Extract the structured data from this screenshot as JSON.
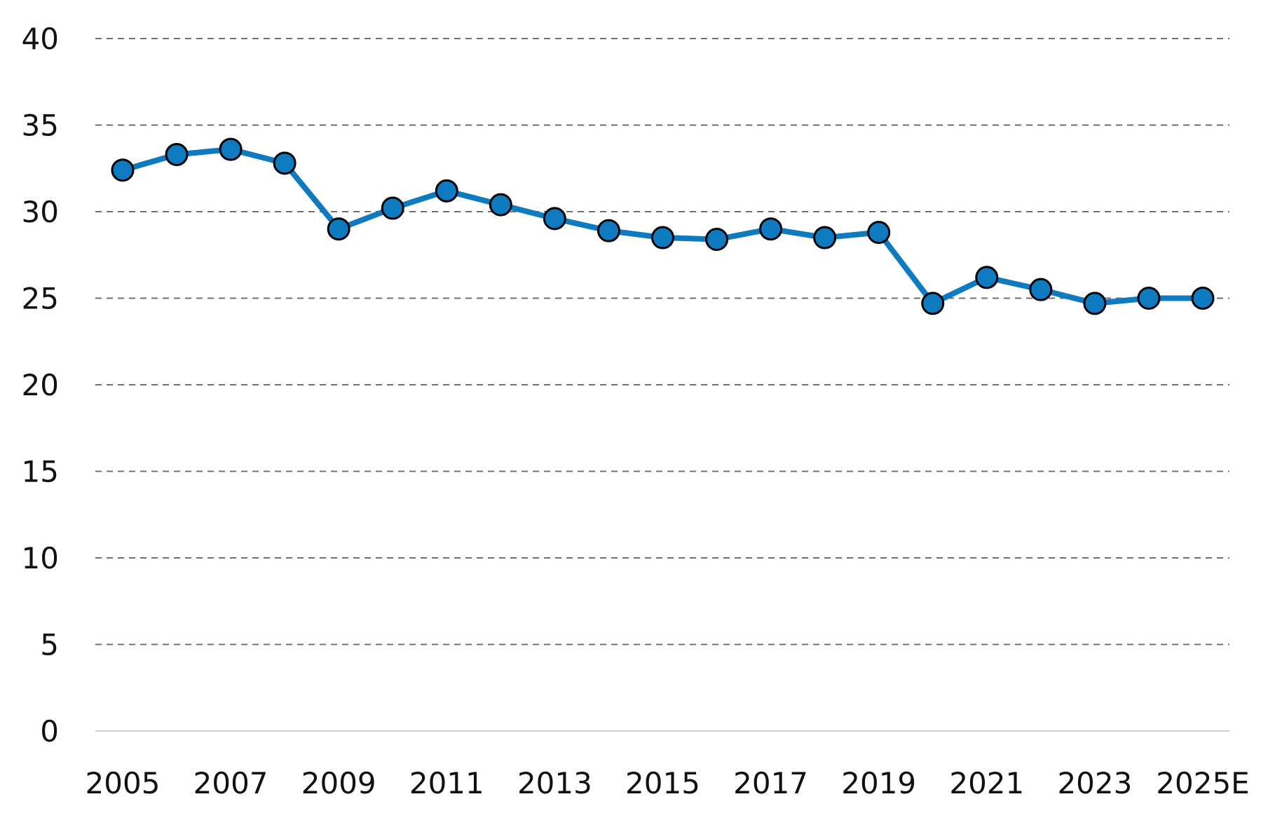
{
  "chart_data": {
    "type": "line",
    "title": "",
    "xlabel": "",
    "ylabel": "",
    "x": [
      "2005",
      "2006",
      "2007",
      "2008",
      "2009",
      "2010",
      "2011",
      "2012",
      "2013",
      "2014",
      "2015",
      "2016",
      "2017",
      "2018",
      "2019",
      "2020",
      "2021",
      "2022",
      "2023",
      "2024",
      "2025E"
    ],
    "x_tick_labels": [
      "2005",
      "2007",
      "2009",
      "2011",
      "2013",
      "2015",
      "2017",
      "2019",
      "2021",
      "2023",
      "2025E"
    ],
    "series": [
      {
        "values": [
          32.4,
          33.3,
          33.6,
          32.8,
          29.0,
          30.2,
          31.2,
          30.4,
          29.6,
          28.9,
          28.5,
          28.4,
          29.0,
          28.5,
          28.8,
          24.7,
          26.2,
          25.5,
          24.7,
          25.0,
          25.0
        ],
        "color": "#0e7bc0"
      }
    ],
    "y_ticks": [
      0,
      5,
      10,
      15,
      20,
      25,
      30,
      35,
      40
    ],
    "ylim": [
      0,
      40
    ],
    "grid": true,
    "legend": "none"
  }
}
